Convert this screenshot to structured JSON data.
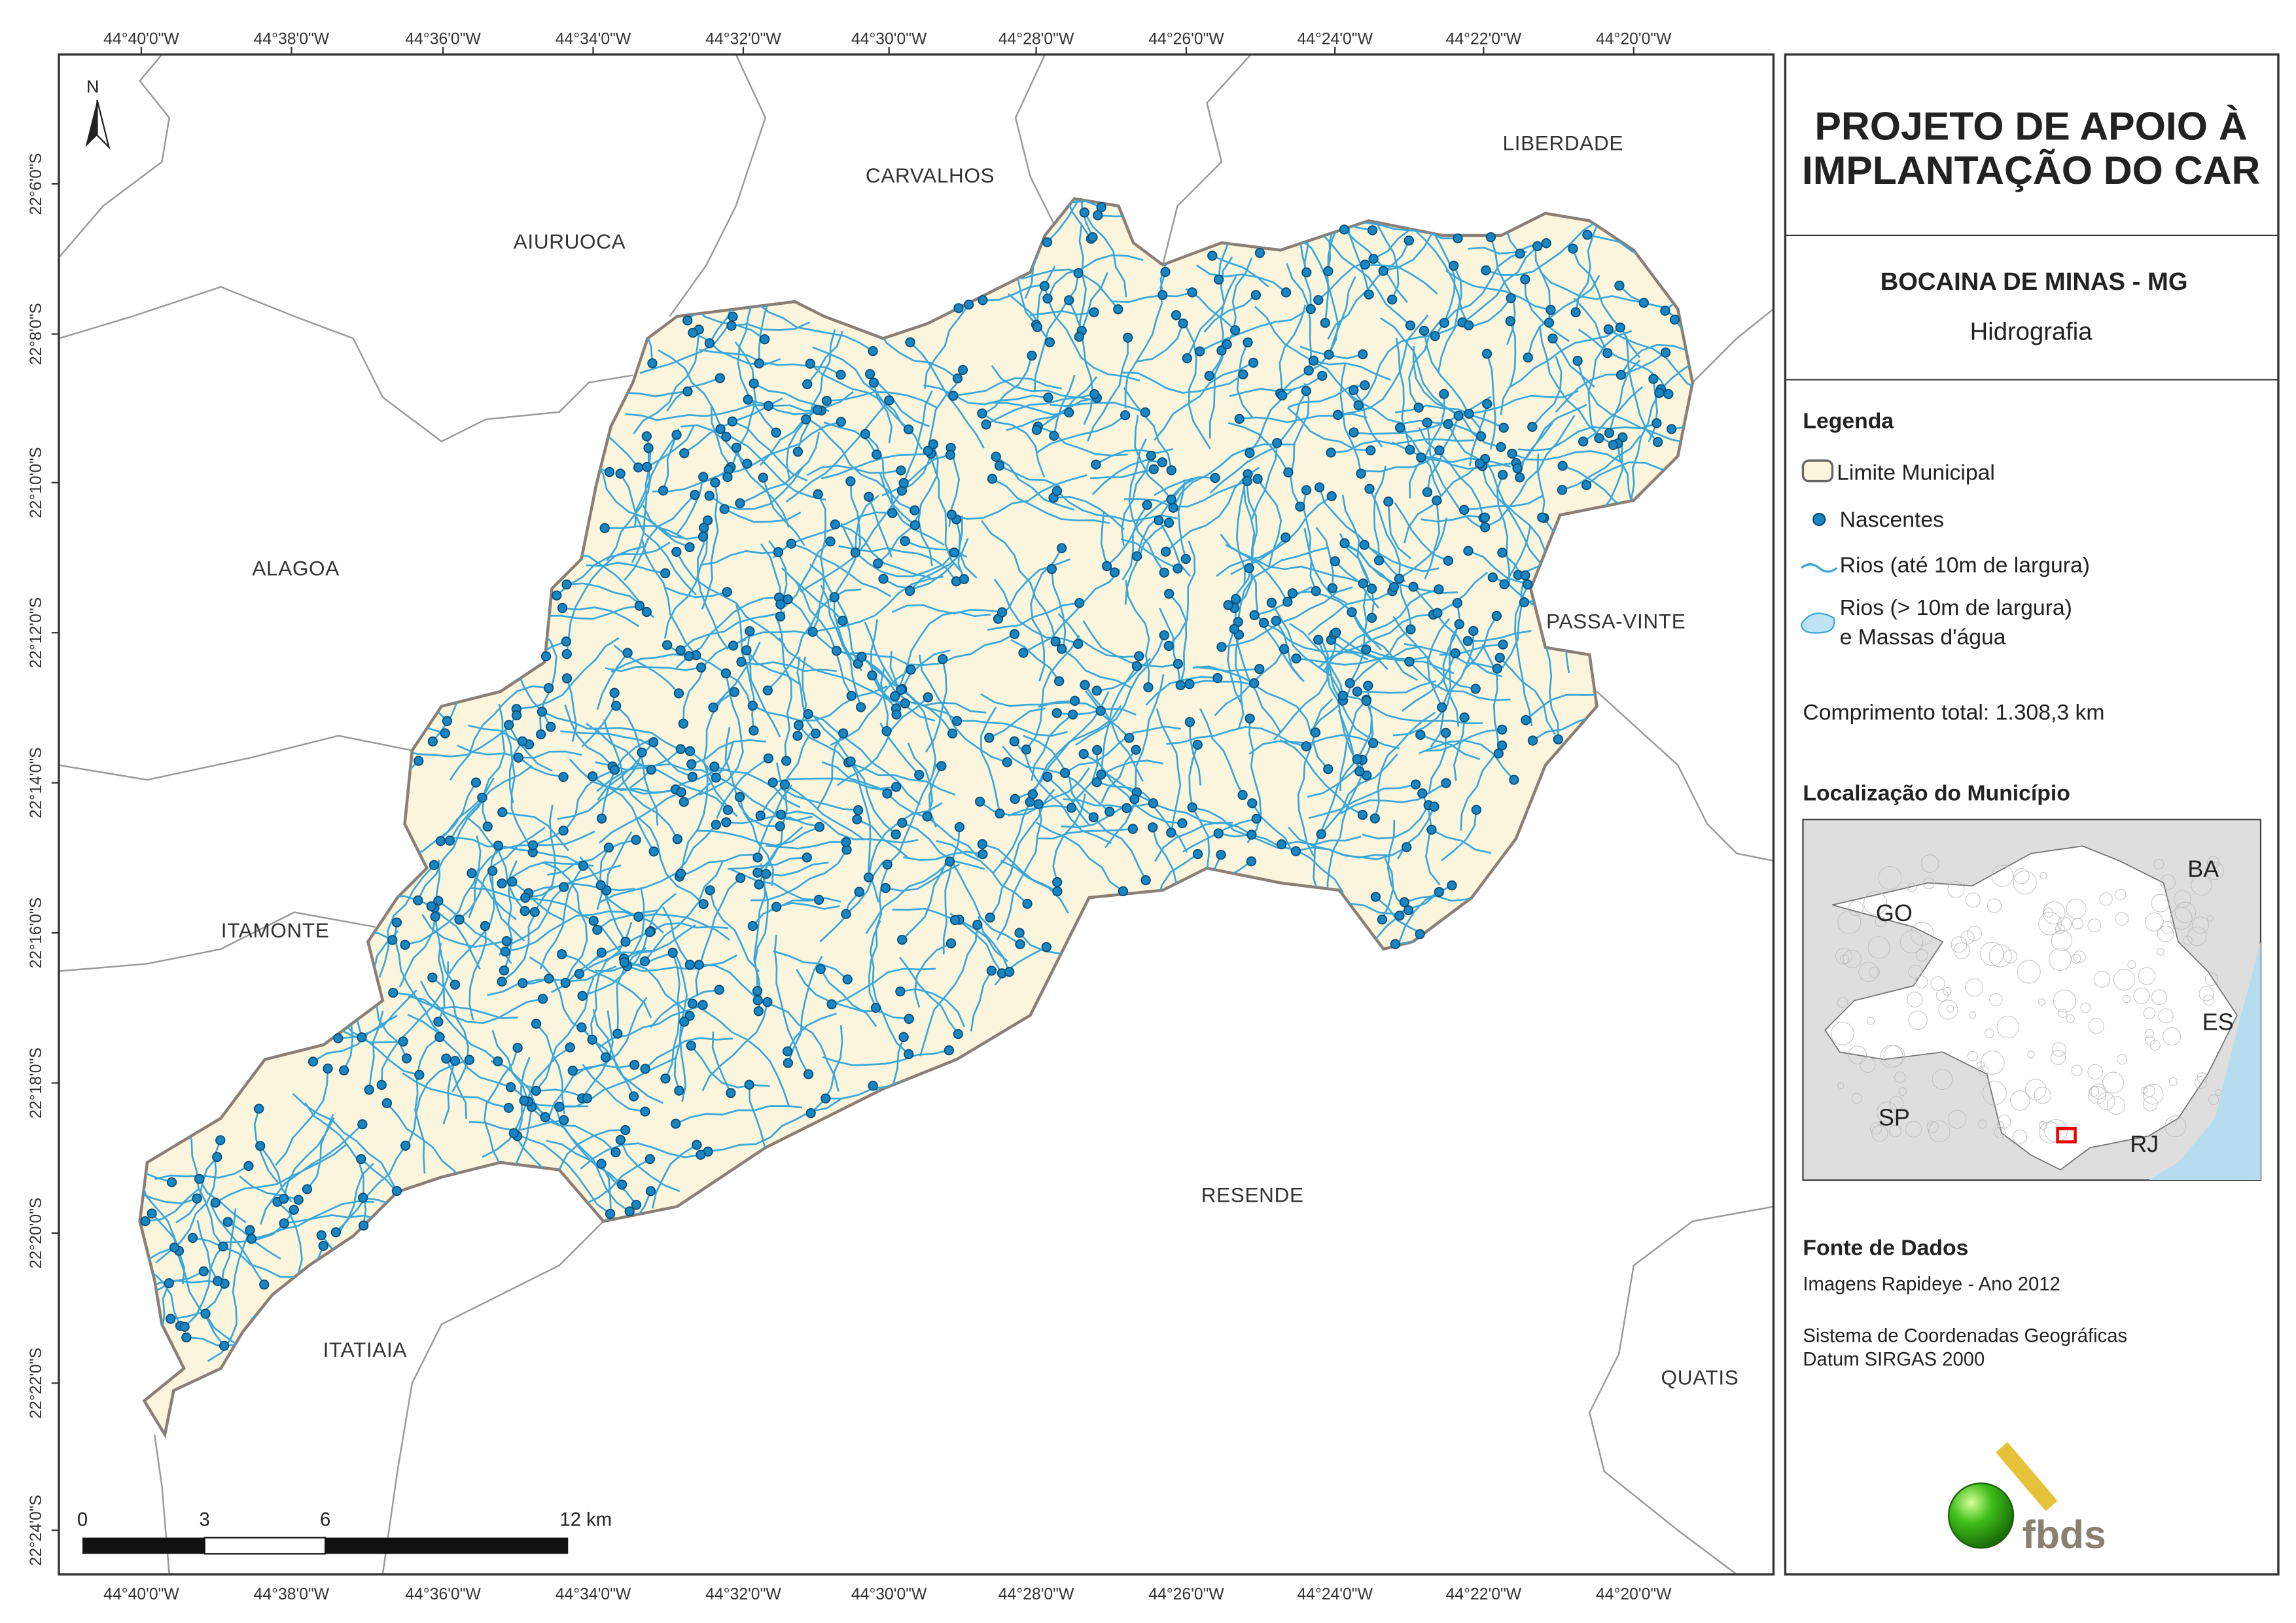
{
  "header": {
    "title_lines": [
      "PROJETO DE APOIO À",
      "IMPLANTAÇÃO DO CAR"
    ],
    "municipality": "BOCAINA DE MINAS - MG",
    "theme": "Hidrografia"
  },
  "legend": {
    "title": "Legenda",
    "items": [
      "Limite Municipal",
      "Nascentes",
      "Rios (até 10m de largura)",
      "Rios (> 10m de largura)",
      "e Massas d'água"
    ],
    "total_length": "Comprimento total: 1.308,3 km"
  },
  "location": {
    "title": "Localização do Município",
    "states": [
      "GO",
      "BA",
      "ES",
      "SP",
      "RJ"
    ]
  },
  "sources": {
    "title": "Fonte de Dados",
    "lines": [
      "Imagens Rapideye - Ano 2012",
      "Sistema de Coordenadas Geográficas",
      "Datum SIRGAS 2000"
    ]
  },
  "logo": "fbds",
  "map": {
    "north": "N",
    "neighbors": [
      "CARVALHOS",
      "LIBERDADE",
      "AIURUOCA",
      "ALAGOA",
      "PASSA-VINTE",
      "ITAMONTE",
      "RESENDE",
      "ITATIAIA",
      "QUATIS"
    ],
    "longitude_labels": [
      "44°40'0\"W",
      "44°38'0\"W",
      "44°36'0\"W",
      "44°34'0\"W",
      "44°32'0\"W",
      "44°30'0\"W",
      "44°28'0\"W",
      "44°26'0\"W",
      "44°24'0\"W",
      "44°22'0\"W",
      "44°20'0\"W"
    ],
    "latitude_labels": [
      "22°6'0\"S",
      "22°8'0\"S",
      "22°10'0\"S",
      "22°12'0\"S",
      "22°14'0\"S",
      "22°16'0\"S",
      "22°18'0\"S",
      "22°20'0\"S",
      "22°22'0\"S",
      "22°24'0\"S"
    ],
    "scale_bar": [
      "0",
      "3",
      "6",
      "12 km"
    ]
  }
}
